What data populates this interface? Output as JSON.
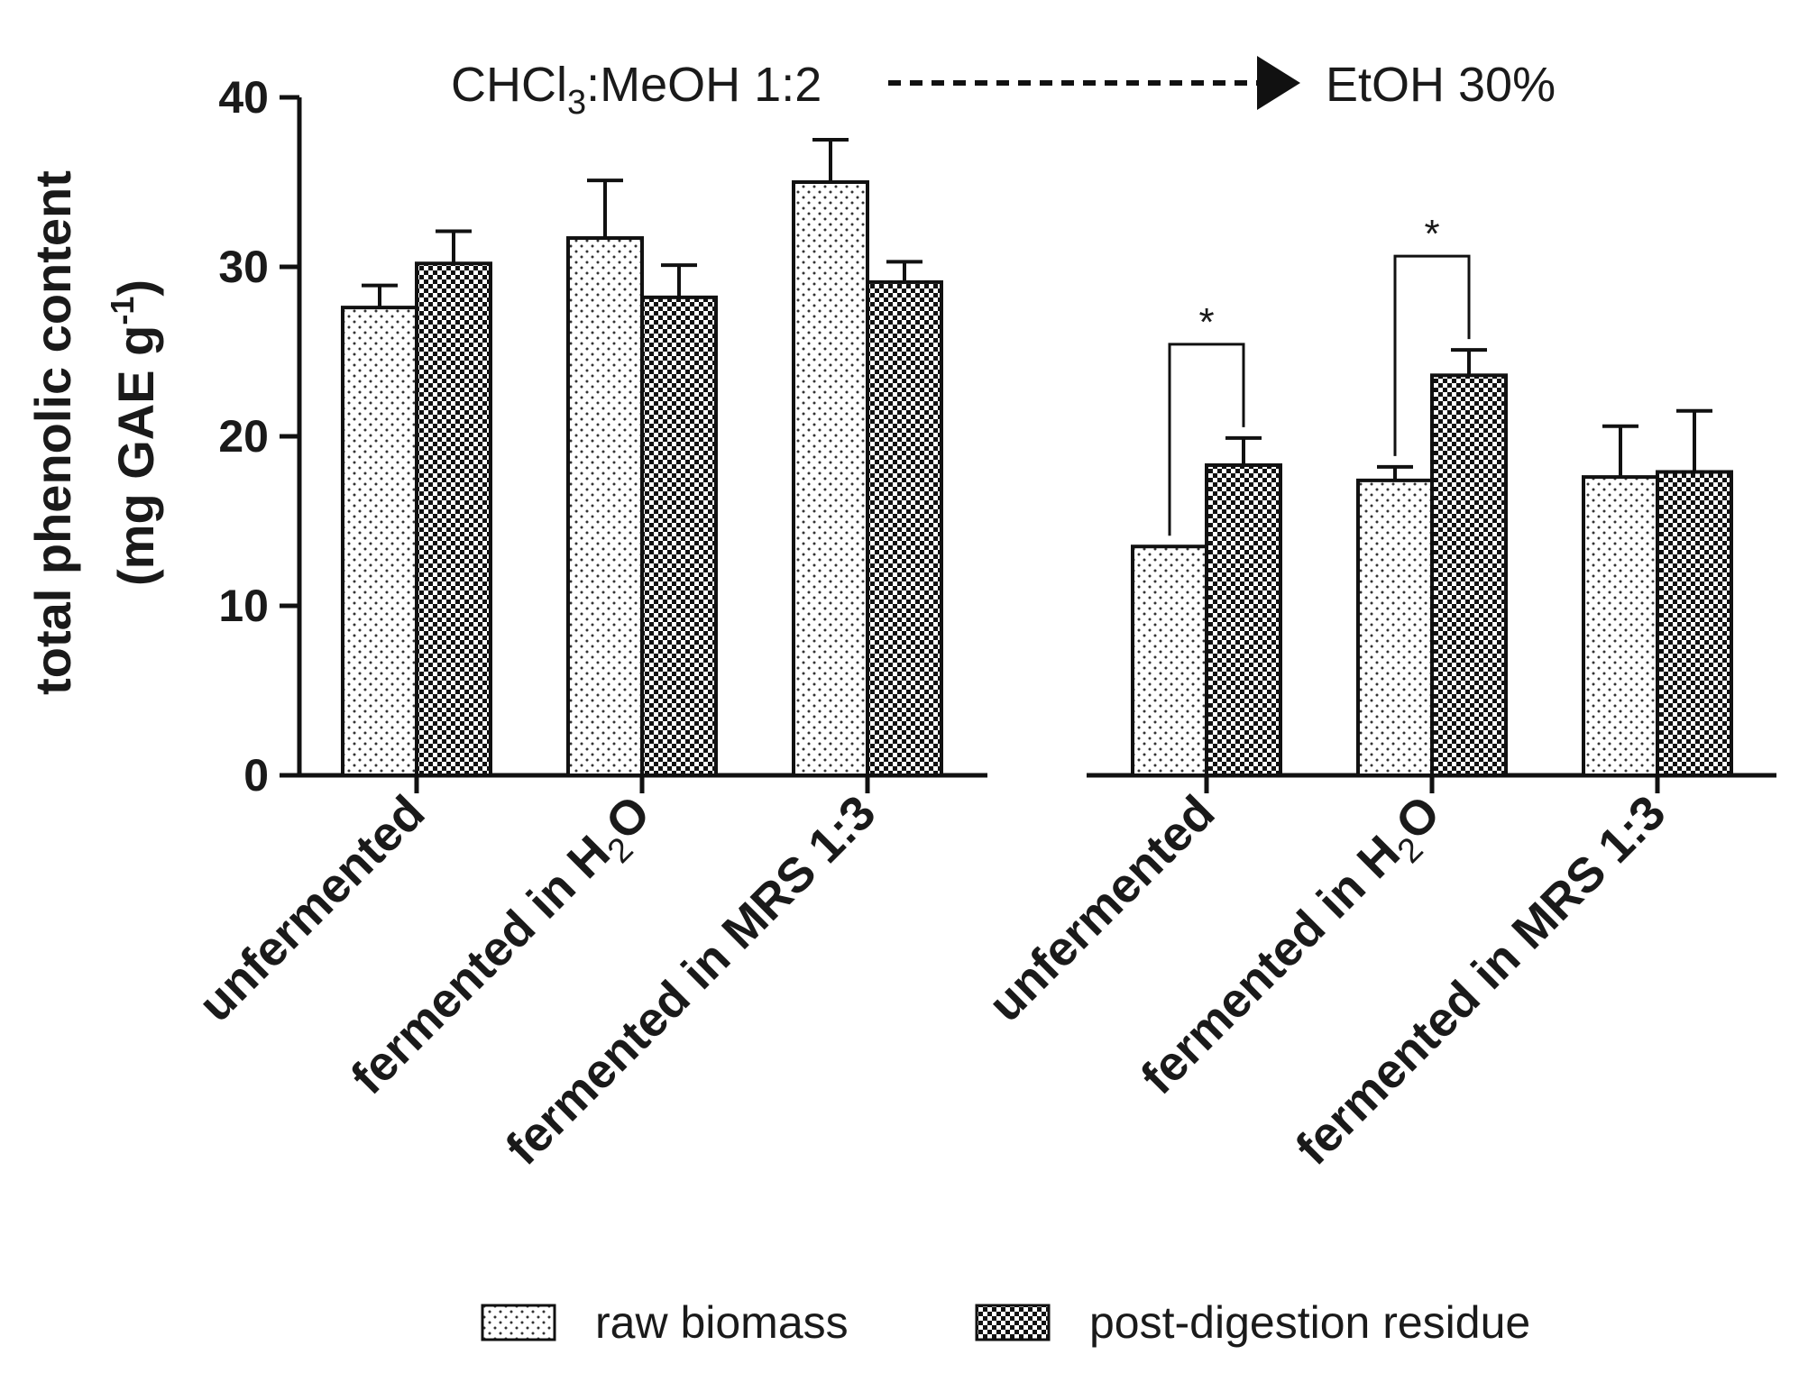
{
  "chart_data": {
    "type": "bar",
    "ylabel_line1": "total phenolic content",
    "ylabel_line2_prefix": "(mg GAE g",
    "ylabel_line2_sup": "-1",
    "ylabel_line2_suffix": ")",
    "ylim": [
      0,
      40
    ],
    "yticks": [
      "0",
      "10",
      "20",
      "30",
      "40"
    ],
    "annotation": {
      "left_main": "CHCl",
      "left_sub": "3",
      "left_rest": ":MeOH 1:2",
      "right": "EtOH 30%"
    },
    "categories": [
      {
        "text": "unfermented"
      },
      {
        "text": "fermented in H",
        "sub": "2",
        "rest": "O"
      },
      {
        "text": "fermented in MRS 1:3"
      }
    ],
    "panels": [
      {
        "series": [
          {
            "name": "raw biomass",
            "values": [
              27.6,
              31.7,
              35.0
            ],
            "errors": [
              1.3,
              3.4,
              2.5
            ]
          },
          {
            "name": "post-digestion residue",
            "values": [
              30.2,
              28.2,
              29.1
            ],
            "errors": [
              1.9,
              1.9,
              1.2
            ]
          }
        ]
      },
      {
        "series": [
          {
            "name": "raw biomass",
            "values": [
              13.5,
              17.4,
              17.6
            ],
            "errors": [
              0,
              0.8,
              3.0
            ]
          },
          {
            "name": "post-digestion residue",
            "values": [
              18.3,
              23.6,
              17.9
            ],
            "errors": [
              1.6,
              1.5,
              3.6
            ]
          }
        ]
      }
    ],
    "significance": [
      {
        "panel": 1,
        "category": 0,
        "label": "*"
      },
      {
        "panel": 1,
        "category": 1,
        "label": "*"
      }
    ],
    "legend": {
      "position": "bottom",
      "items": [
        "raw biomass",
        "post-digestion residue"
      ]
    }
  }
}
